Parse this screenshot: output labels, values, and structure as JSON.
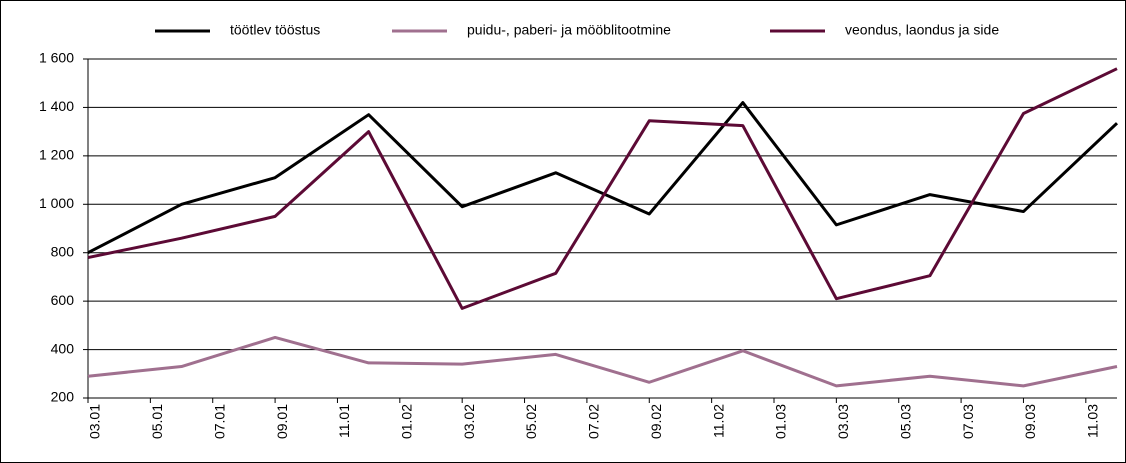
{
  "chart_data": {
    "type": "line",
    "xlim": [
      0,
      33
    ],
    "xticks": [
      {
        "value": 0,
        "label": "03.01"
      },
      {
        "value": 2,
        "label": "05.01"
      },
      {
        "value": 4,
        "label": "07.01"
      },
      {
        "value": 6,
        "label": "09.01"
      },
      {
        "value": 8,
        "label": "11.01"
      },
      {
        "value": 10,
        "label": "01.02"
      },
      {
        "value": 12,
        "label": "03.02"
      },
      {
        "value": 14,
        "label": "05.02"
      },
      {
        "value": 16,
        "label": "07.02"
      },
      {
        "value": 18,
        "label": "09.02"
      },
      {
        "value": 20,
        "label": "11.02"
      },
      {
        "value": 22,
        "label": "01.03"
      },
      {
        "value": 24,
        "label": "03.03"
      },
      {
        "value": 26,
        "label": "05.03"
      },
      {
        "value": 28,
        "label": "07.03"
      },
      {
        "value": 30,
        "label": "09.03"
      },
      {
        "value": 32,
        "label": "11.03"
      }
    ],
    "x": [
      0,
      3,
      6,
      9,
      12,
      15,
      18,
      21,
      24,
      27,
      30,
      33
    ],
    "ylim": [
      200,
      1600
    ],
    "yticks": [
      200,
      400,
      600,
      800,
      {
        "value": 1000,
        "label": "1 000"
      },
      {
        "value": 1200,
        "label": "1 200"
      },
      {
        "value": 1400,
        "label": "1 400"
      },
      {
        "value": 1600,
        "label": "1 600"
      }
    ],
    "grid": true,
    "legend": "top",
    "series": [
      {
        "name": "töötlev tööstus",
        "color": "#000000",
        "values": [
          800,
          1000,
          1110,
          1370,
          990,
          1130,
          960,
          1420,
          915,
          1040,
          970,
          1335
        ]
      },
      {
        "name": "puidu-, paberi- ja mööblitootmine",
        "color": "#a0708f",
        "values": [
          290,
          330,
          450,
          345,
          340,
          380,
          265,
          395,
          250,
          290,
          250,
          330
        ]
      },
      {
        "name": "veondus, laondus ja side",
        "color": "#5c0a35",
        "values": [
          780,
          860,
          950,
          1300,
          570,
          715,
          1345,
          1325,
          610,
          705,
          1375,
          1560
        ]
      }
    ]
  }
}
